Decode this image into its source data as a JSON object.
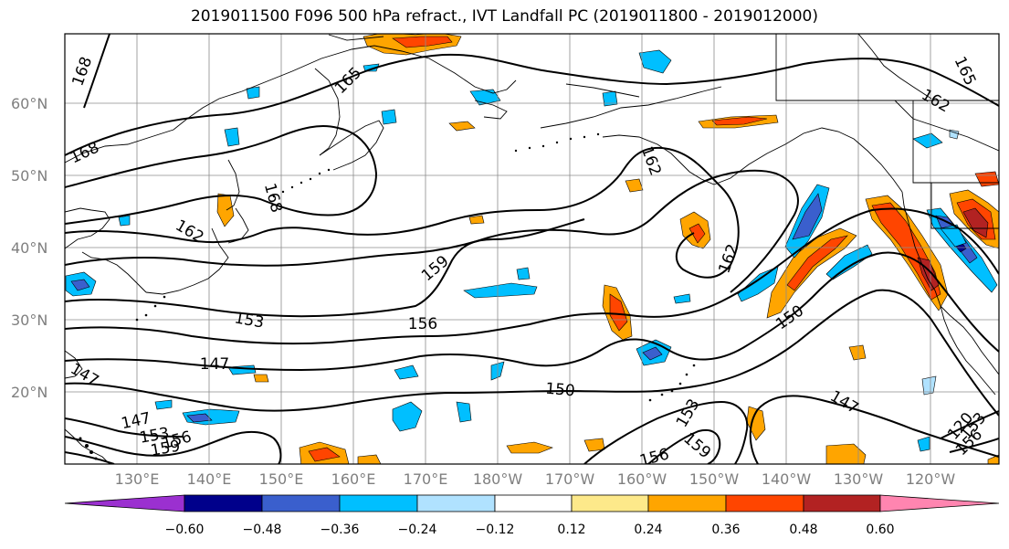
{
  "title": "2019011500 F096 500 hPa refract., IVT Landfall PC (2019011800 - 2019012000)",
  "map": {
    "lat_labels": [
      "60°N",
      "50°N",
      "40°N",
      "30°N",
      "20°N"
    ],
    "lon_labels": [
      "130°E",
      "140°E",
      "150°E",
      "160°E",
      "170°E",
      "180°W",
      "170°W",
      "160°W",
      "150°W",
      "140°W",
      "130°W",
      "120°W"
    ],
    "contour_labels": [
      "168",
      "165",
      "168",
      "168",
      "162",
      "165",
      "162",
      "162",
      "159",
      "162",
      "156",
      "153",
      "150",
      "147",
      "147",
      "150",
      "147",
      "147",
      "153",
      "159",
      "156",
      "153",
      "159",
      "156",
      "120",
      "153",
      "156"
    ]
  },
  "colorbar": {
    "tick_labels": [
      "−0.60",
      "−0.48",
      "−0.36",
      "−0.24",
      "−0.12",
      "0.12",
      "0.24",
      "0.36",
      "0.48",
      "0.60"
    ],
    "colors": [
      "#9b30d0",
      "#00008b",
      "#3a5fcd",
      "#00bfff",
      "#b0e2ff",
      "#ffffff",
      "#fde98a",
      "#ffa500",
      "#ff4500",
      "#b22222",
      "#ff85b0"
    ]
  },
  "chart_data": {
    "type": "heatmap",
    "title": "2019011500 F096 500 hPa refract., IVT Landfall PC (2019011800 - 2019012000)",
    "filled_field": "IVT Landfall PC",
    "contour_field": "500 hPa refract.",
    "colorbar_ticks": [
      -0.6,
      -0.48,
      -0.36,
      -0.24,
      -0.12,
      0.12,
      0.24,
      0.36,
      0.48,
      0.6
    ],
    "contour_levels": [
      120,
      147,
      150,
      153,
      156,
      159,
      162,
      165,
      168
    ],
    "lon_ticks": [
      "130°E",
      "140°E",
      "150°E",
      "160°E",
      "170°E",
      "180°W",
      "170°W",
      "160°W",
      "150°W",
      "140°W",
      "130°W",
      "120°W"
    ],
    "lat_ticks": [
      "20°N",
      "30°N",
      "40°N",
      "50°N",
      "60°N"
    ],
    "grid": true,
    "colorbar_position": "bottom"
  }
}
